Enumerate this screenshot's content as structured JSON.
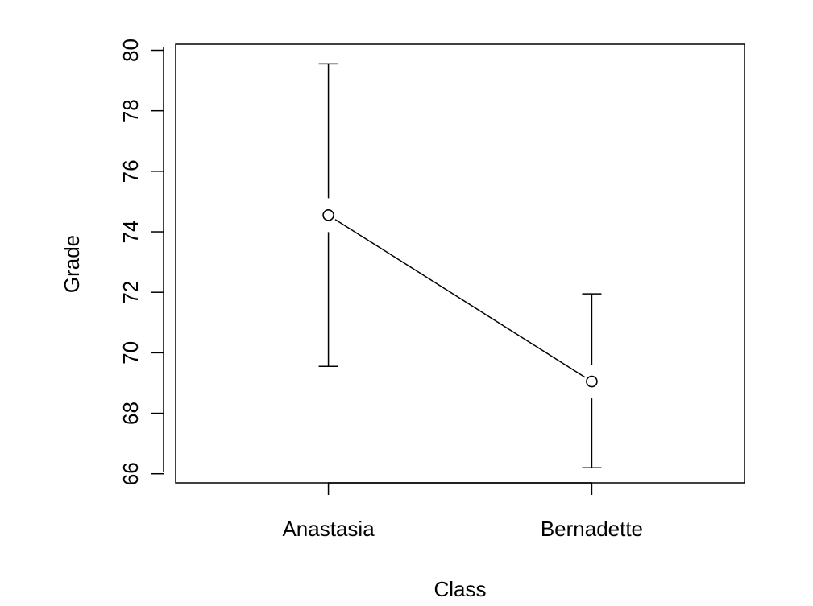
{
  "chart_data": {
    "type": "line",
    "title": "",
    "xlabel": "Class",
    "ylabel": "Grade",
    "categories": [
      "Anastasia",
      "Bernadette"
    ],
    "series": [
      {
        "values": [
          74.55,
          69.05
        ],
        "lower": [
          69.55,
          66.2
        ],
        "upper": [
          79.55,
          71.95
        ]
      }
    ],
    "ylim": [
      65.7,
      80.2
    ],
    "yticks": [
      66,
      68,
      70,
      72,
      74,
      76,
      78,
      80
    ],
    "grid": false,
    "marker": "open-circle",
    "colors": {
      "line": "#000000",
      "background": "#ffffff"
    }
  }
}
